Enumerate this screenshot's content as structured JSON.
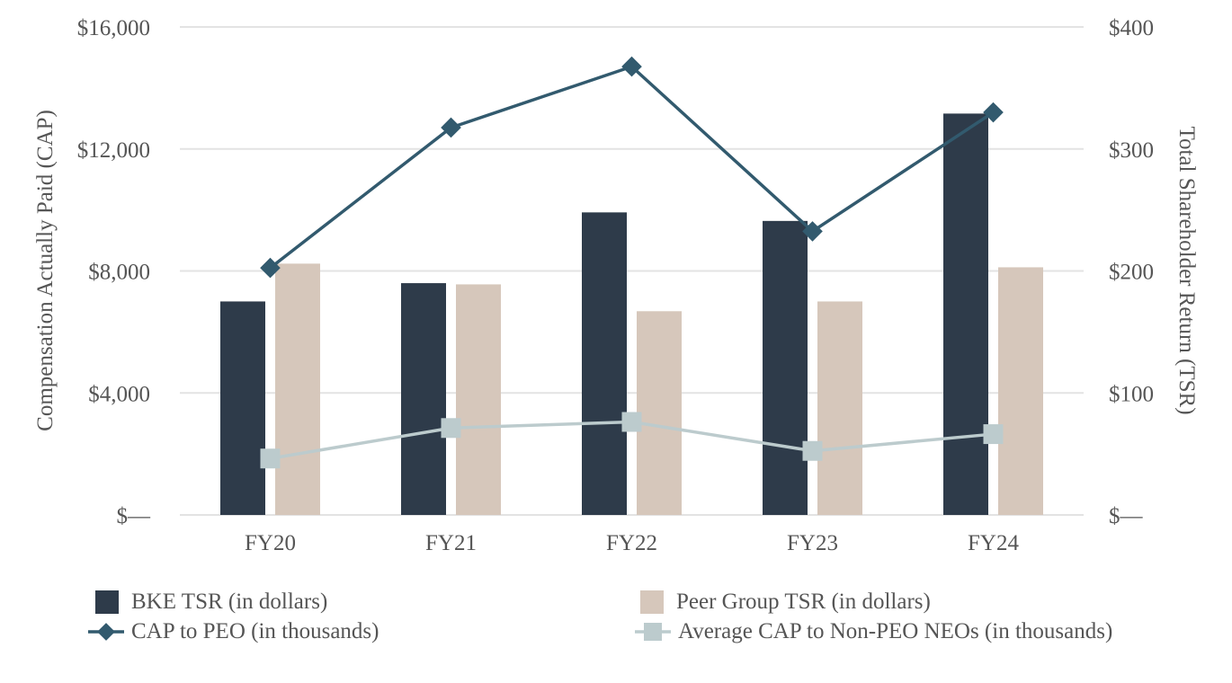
{
  "chart_data": {
    "type": "bar",
    "categories": [
      "FY20",
      "FY21",
      "FY22",
      "FY23",
      "FY24"
    ],
    "ylabel": "Compensation Actually Paid (CAP)",
    "y2label": "Total Shareholder Return (TSR)",
    "ylim": [
      0,
      16000
    ],
    "y2lim": [
      0,
      400
    ],
    "yticks": [
      "$—",
      "$4,000",
      "$8,000",
      "$12,000",
      "$16,000"
    ],
    "y2ticks": [
      "$—",
      "$100",
      "$200",
      "$300",
      "$400"
    ],
    "grid": true,
    "legend_position": "bottom",
    "series": [
      {
        "name": "BKE TSR (in dollars)",
        "kind": "bar",
        "axis": "right",
        "color": "#2e3b4a",
        "values": [
          175,
          190,
          248,
          241,
          329
        ]
      },
      {
        "name": "Peer Group TSR (in dollars)",
        "kind": "bar",
        "axis": "right",
        "color": "#d6c7bb",
        "values": [
          206,
          189,
          167,
          175,
          203
        ]
      },
      {
        "name": "CAP to PEO (in thousands)",
        "kind": "line",
        "axis": "left",
        "marker": "diamond",
        "color": "#325a6e",
        "values": [
          8100,
          12700,
          14700,
          9300,
          13200
        ]
      },
      {
        "name": "Average CAP to Non-PEO NEOs (in thousands)",
        "kind": "line",
        "axis": "left",
        "marker": "square",
        "color": "#bccbcd",
        "values": [
          1850,
          2850,
          3050,
          2100,
          2650
        ]
      }
    ]
  }
}
